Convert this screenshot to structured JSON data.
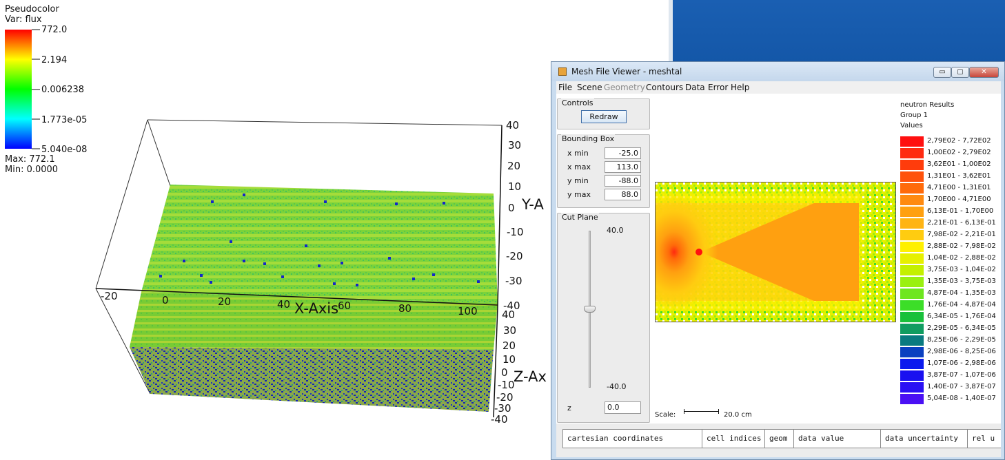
{
  "visit": {
    "legend": {
      "plot_type": "Pseudocolor",
      "variable": "Var: flux",
      "ticks": [
        "772.0",
        "2.194",
        "0.006238",
        "1.773e-05",
        "5.040e-08"
      ],
      "max": "Max:  772.1",
      "min": "Min:  0.0000"
    },
    "x_axis": {
      "name": "X-Axis",
      "ticks": [
        "-20",
        "0",
        "20",
        "40",
        "60",
        "80",
        "100"
      ]
    },
    "y_axis": {
      "name": "Y-A",
      "ticks": [
        "40",
        "30",
        "20",
        "10",
        "0",
        "-10",
        "-20",
        "-30",
        "-40"
      ]
    },
    "z_axis": {
      "name": "Z-Ax",
      "ticks": [
        "40",
        "30",
        "20",
        "10",
        "0",
        "-10",
        "-20",
        "-30",
        "-40"
      ]
    }
  },
  "window": {
    "title": "Mesh File Viewer - meshtal",
    "buttons": {
      "minimize": "▭",
      "maximize": "▢",
      "close": "✕"
    },
    "menu": [
      {
        "label": "File",
        "enabled": true
      },
      {
        "label": "Scene",
        "enabled": true
      },
      {
        "label": "Geometry",
        "enabled": false
      },
      {
        "label": "Contours",
        "enabled": true
      },
      {
        "label": "Data",
        "enabled": true
      },
      {
        "label": "Error",
        "enabled": true
      },
      {
        "label": "Help",
        "enabled": true
      }
    ],
    "controls": {
      "title": "Controls",
      "redraw": "Redraw"
    },
    "bounding_box": {
      "title": "Bounding Box",
      "fields": [
        {
          "label": "x min",
          "value": "-25.0"
        },
        {
          "label": "x max",
          "value": "113.0"
        },
        {
          "label": "y min",
          "value": "-88.0"
        },
        {
          "label": "y max",
          "value": "88.0"
        }
      ]
    },
    "cut_plane": {
      "title": "Cut Plane",
      "top_value": "40.0",
      "bottom_value": "-40.0",
      "axis_label": "z",
      "value": "0.0",
      "slider_level": 0.5
    },
    "scale": {
      "label": "Scale:",
      "value": "20.0 cm"
    },
    "legend": {
      "header": [
        "neutron Results",
        "Group 1",
        "Values"
      ],
      "entries": [
        {
          "range": "2,79E02 - 7,72E02",
          "color": "#ff1010"
        },
        {
          "range": "1,00E02 - 2,79E02",
          "color": "#ff2a10"
        },
        {
          "range": "3,62E01 - 1,00E02",
          "color": "#ff3c0c"
        },
        {
          "range": "1,31E01 - 3,62E01",
          "color": "#ff520c"
        },
        {
          "range": "4,71E00 - 1,31E01",
          "color": "#ff6a0a"
        },
        {
          "range": "1,70E00 - 4,71E00",
          "color": "#ff8a10"
        },
        {
          "range": "6,13E-01 - 1,70E00",
          "color": "#ffa010"
        },
        {
          "range": "2,21E-01 - 6,13E-01",
          "color": "#ffb414"
        },
        {
          "range": "7,98E-02 - 2,21E-01",
          "color": "#ffcc10"
        },
        {
          "range": "2,88E-02 - 7,98E-02",
          "color": "#fff000"
        },
        {
          "range": "1,04E-02 - 2,88E-02",
          "color": "#e6f000"
        },
        {
          "range": "3,75E-03 - 1,04E-02",
          "color": "#c4f000"
        },
        {
          "range": "1,35E-03 - 3,75E-03",
          "color": "#9af010"
        },
        {
          "range": "4,87E-04 - 1,35E-03",
          "color": "#6ee620"
        },
        {
          "range": "1,76E-04 - 4,87E-04",
          "color": "#3cde28"
        },
        {
          "range": "6,34E-05 - 1,76E-04",
          "color": "#18c03a"
        },
        {
          "range": "2,29E-05 - 6,34E-05",
          "color": "#109c60"
        },
        {
          "range": "8,25E-06 - 2,29E-05",
          "color": "#0a7a80"
        },
        {
          "range": "2,98E-06 - 8,25E-06",
          "color": "#0a40c0"
        },
        {
          "range": "1,07E-06 - 2,98E-06",
          "color": "#0a1aee"
        },
        {
          "range": "3,87E-07 - 1,07E-06",
          "color": "#1a10f0"
        },
        {
          "range": "1,40E-07 - 3,87E-07",
          "color": "#2a10f4"
        },
        {
          "range": "5,04E-08 - 1,40E-07",
          "color": "#4a10f4"
        }
      ]
    },
    "table_columns": [
      "cartesian coordinates",
      "cell indices",
      "geom",
      "data value",
      "data uncertainty",
      "rel u"
    ]
  }
}
